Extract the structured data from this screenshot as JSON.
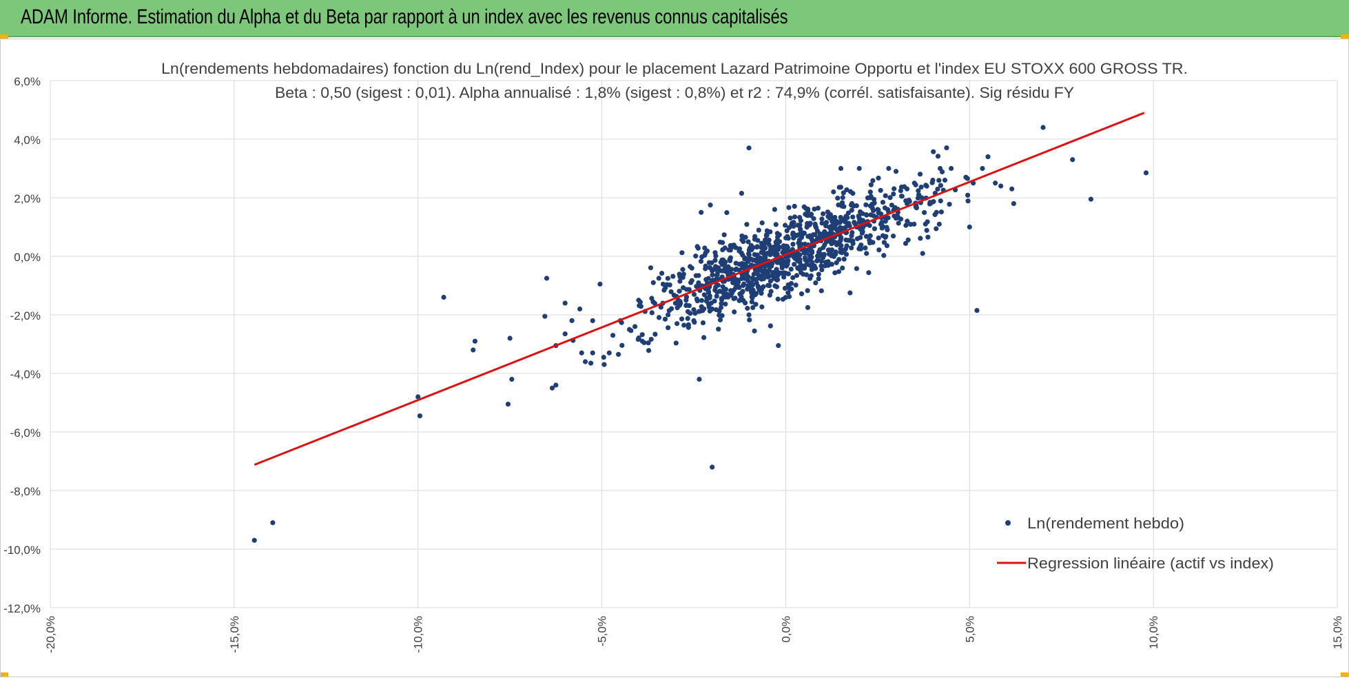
{
  "header": {
    "title": "ADAM Informe. Estimation du Alpha et du Beta par rapport à un index avec les revenus connus capitalisés"
  },
  "colors": {
    "header_bg": "#7dc77a",
    "points": "#1f3e75",
    "regression": "#e11010",
    "grid": "#d9d9d9",
    "handles": "#f2b200"
  },
  "chart_data": {
    "type": "scatter",
    "title": "Ln(rendements hebdomadaires) fonction du Ln(rend_Index) pour le placement Lazard Patrimoine Opportu et l'index EU STOXX 600 GROSS TR.",
    "subtitle": "Beta : 0,50 (sigest : 0,01).  Alpha annualisé : 1,8% (sigest : 0,8%) et r2 : 74,9% (corrél. satisfaisante). Sig résidu FY",
    "xlim": [
      -0.2,
      0.15
    ],
    "ylim": [
      -0.12,
      0.06
    ],
    "x_ticks": [
      -0.2,
      -0.15,
      -0.1,
      -0.05,
      0.0,
      0.05,
      0.1,
      0.15
    ],
    "x_tick_labels": [
      "-20,0%",
      "-15,0%",
      "-10,0%",
      "-5,0%",
      "0,0%",
      "5,0%",
      "10,0%",
      "15,0%"
    ],
    "y_ticks": [
      0.06,
      0.04,
      0.02,
      0.0,
      -0.02,
      -0.04,
      -0.06,
      -0.08,
      -0.1,
      -0.12
    ],
    "y_tick_labels": [
      "6,0%",
      "4,0%",
      "2,0%",
      "0,0%",
      "-2,0%",
      "-4,0%",
      "-6,0%",
      "-8,0%",
      "-10,0%",
      "-12,0%"
    ],
    "grid": true,
    "legend_position": "bottom-right",
    "series": [
      {
        "name": "Ln(rendement hebdo)",
        "kind": "scatter",
        "color": "#1f3e75",
        "points": [
          [
            -0.1445,
            -0.097
          ],
          [
            -0.1395,
            -0.091
          ],
          [
            -0.1,
            -0.048
          ],
          [
            -0.0995,
            -0.0545
          ],
          [
            -0.093,
            -0.014
          ],
          [
            -0.0845,
            -0.029
          ],
          [
            -0.085,
            -0.032
          ],
          [
            -0.075,
            -0.028
          ],
          [
            -0.0745,
            -0.042
          ],
          [
            -0.0755,
            -0.0505
          ],
          [
            -0.065,
            -0.0075
          ],
          [
            -0.0655,
            -0.0205
          ],
          [
            -0.0635,
            -0.045
          ],
          [
            -0.0625,
            -0.044
          ],
          [
            -0.06,
            -0.016
          ],
          [
            -0.06,
            -0.0265
          ],
          [
            -0.056,
            -0.018
          ],
          [
            -0.0555,
            -0.033
          ],
          [
            -0.0545,
            -0.036
          ],
          [
            -0.053,
            -0.0365
          ],
          [
            -0.0525,
            -0.033
          ],
          [
            -0.0495,
            -0.0345
          ],
          [
            -0.048,
            -0.033
          ],
          [
            -0.0455,
            -0.0335
          ],
          [
            -0.0525,
            -0.022
          ],
          [
            -0.0505,
            -0.0095
          ],
          [
            -0.0625,
            -0.0305
          ],
          [
            -0.0425,
            -0.025
          ],
          [
            -0.041,
            -0.024
          ],
          [
            -0.039,
            -0.029
          ],
          [
            -0.0385,
            -0.0295
          ],
          [
            -0.03,
            -0.016
          ],
          [
            -0.02,
            -0.018
          ],
          [
            -0.023,
            0.015
          ],
          [
            -0.0205,
            0.0175
          ],
          [
            -0.01,
            0.037
          ],
          [
            -0.012,
            0.0215
          ],
          [
            -0.02,
            -0.072
          ],
          [
            -0.0085,
            -0.0255
          ],
          [
            -0.002,
            -0.0305
          ],
          [
            -0.003,
            0.016
          ],
          [
            0.013,
            0.022
          ],
          [
            0.02,
            0.03
          ],
          [
            0.015,
            0.03
          ],
          [
            0.028,
            0.03
          ],
          [
            0.03,
            0.029
          ],
          [
            0.035,
            0.025
          ],
          [
            0.042,
            0.03
          ],
          [
            0.045,
            0.03
          ],
          [
            0.049,
            0.027
          ],
          [
            0.051,
            0.025
          ],
          [
            0.0535,
            0.03
          ],
          [
            0.055,
            0.034
          ],
          [
            0.057,
            0.025
          ],
          [
            0.0585,
            0.024
          ],
          [
            0.0615,
            0.023
          ],
          [
            0.062,
            0.018
          ],
          [
            0.07,
            0.044
          ],
          [
            0.078,
            0.033
          ],
          [
            0.083,
            0.0195
          ],
          [
            0.098,
            0.0285
          ],
          [
            0.052,
            -0.0185
          ],
          [
            0.05,
            0.01
          ],
          [
            0.041,
            0.015
          ],
          [
            0.038,
            0.011
          ],
          [
            0.03,
            0.013
          ],
          [
            0.025,
            0.016
          ],
          [
            0.02,
            0.01
          ],
          [
            0.0175,
            -0.0125
          ],
          [
            0.006,
            -0.0175
          ],
          [
            -0.004,
            -0.012
          ],
          [
            -0.01,
            -0.02
          ],
          [
            -0.014,
            -0.019
          ],
          [
            -0.025,
            -0.022
          ],
          [
            -0.032,
            -0.02
          ],
          [
            -0.036,
            -0.009
          ],
          [
            -0.04,
            -0.015
          ],
          [
            -0.045,
            -0.022
          ],
          [
            -0.047,
            -0.027
          ],
          [
            -0.0345,
            -0.0075
          ],
          [
            -0.028,
            -0.0045
          ],
          [
            -0.026,
            -0.0035
          ],
          [
            -0.015,
            -0.0005
          ],
          [
            -0.006,
            0.003
          ],
          [
            0.004,
            0.009
          ],
          [
            0.008,
            0.011
          ],
          [
            0.012,
            0.014
          ],
          [
            0.018,
            0.018
          ],
          [
            0.023,
            0.02
          ],
          [
            0.033,
            0.023
          ],
          [
            0.037,
            0.02
          ],
          [
            0.04,
            0.026
          ],
          [
            0.033,
            0.018
          ],
          [
            0.028,
            0.015
          ],
          [
            0.024,
            0.012
          ]
        ],
        "cloud": {
          "count": 1000,
          "beta": 0.5,
          "alpha_weekly": 0.00035,
          "sd_x": 0.019,
          "sd_resid": 0.0065,
          "seed": 7
        }
      },
      {
        "name": "Regression linéaire (actif vs index)",
        "kind": "line",
        "color": "#e11010",
        "x": [
          -0.1445,
          0.0975
        ],
        "y": [
          -0.0712,
          0.049
        ]
      }
    ]
  }
}
